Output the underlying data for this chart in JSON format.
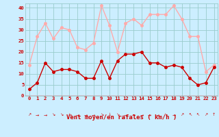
{
  "x": [
    0,
    1,
    2,
    3,
    4,
    5,
    6,
    7,
    8,
    9,
    10,
    11,
    12,
    13,
    14,
    15,
    16,
    17,
    18,
    19,
    20,
    21,
    22,
    23
  ],
  "wind_mean": [
    3,
    6,
    15,
    11,
    12,
    12,
    11,
    8,
    8,
    16,
    8,
    16,
    19,
    19,
    20,
    15,
    15,
    13,
    14,
    13,
    8,
    5,
    6,
    13
  ],
  "wind_gust": [
    14,
    27,
    33,
    26,
    31,
    30,
    22,
    21,
    24,
    41,
    32,
    20,
    33,
    35,
    32,
    37,
    37,
    37,
    41,
    35,
    27,
    27,
    11,
    14
  ],
  "mean_color": "#cc0000",
  "gust_color": "#ffaaaa",
  "bg_color": "#cceeff",
  "grid_color": "#99cccc",
  "ylim": [
    0,
    42
  ],
  "yticks": [
    0,
    5,
    10,
    15,
    20,
    25,
    30,
    35,
    40
  ],
  "xlabel": "Vent moyen/en rafales ( km/h )",
  "xlabel_color": "#cc0000",
  "tick_color": "#cc0000",
  "line_width": 1.0,
  "marker_size": 2.5,
  "arrows": [
    "↗",
    "→",
    "→",
    "↘",
    "↘",
    "↘",
    "→",
    "→",
    "→",
    "↘",
    "↓",
    "↘",
    "→",
    "→",
    "→",
    "→",
    "→",
    "↘",
    "→",
    "↗",
    "↖",
    "↖",
    "↗",
    "↑"
  ]
}
